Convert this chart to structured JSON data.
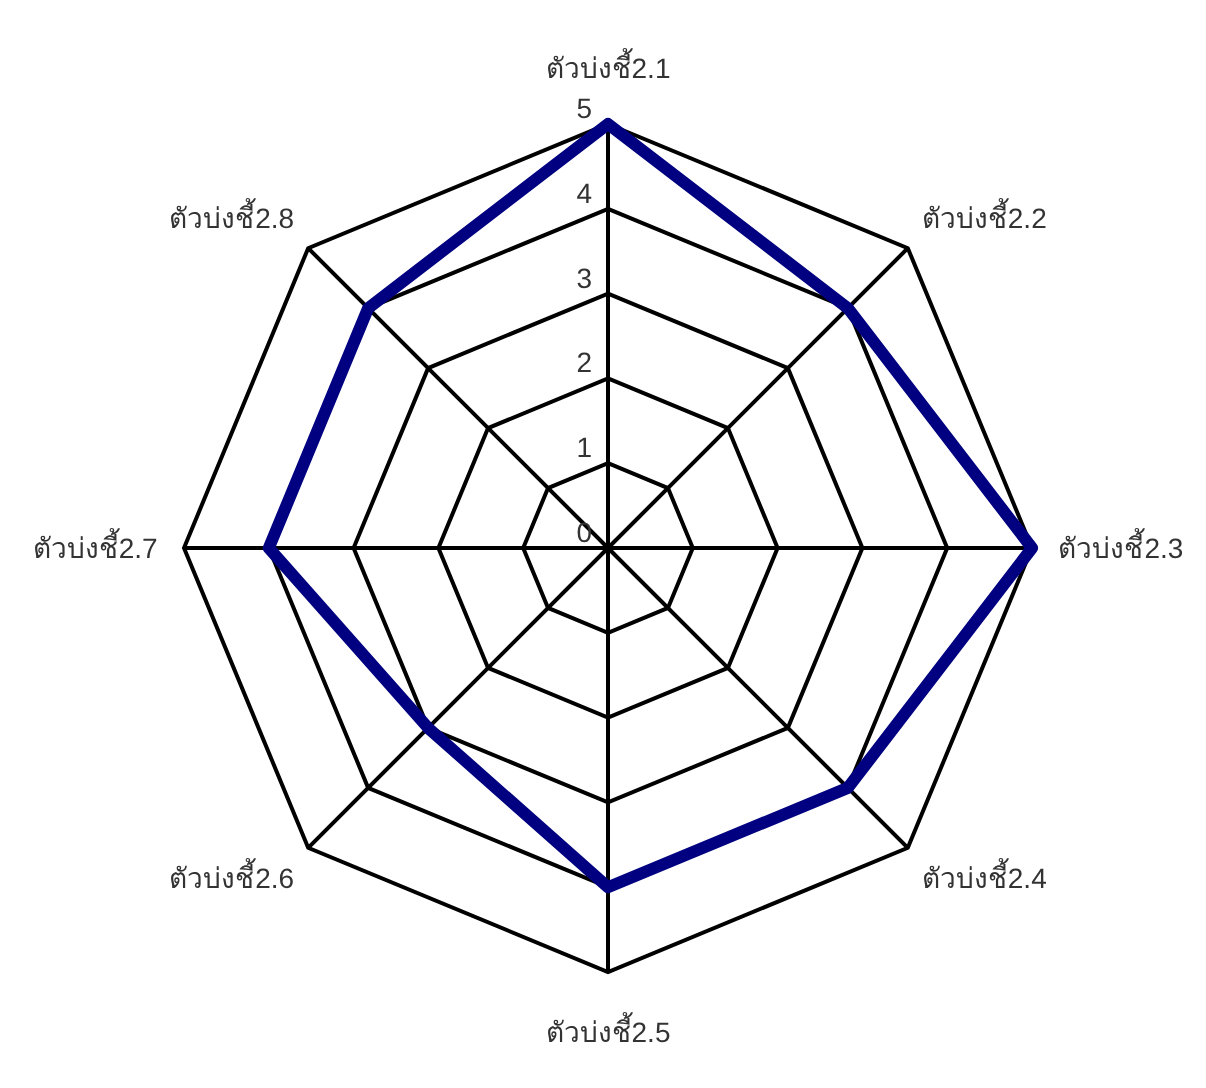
{
  "chart_data": {
    "type": "radar",
    "categories": [
      "ตัวบ่งชี้2.1",
      "ตัวบ่งชี้2.2",
      "ตัวบ่งชี้2.3",
      "ตัวบ่งชี้2.4",
      "ตัวบ่งชี้2.5",
      "ตัวบ่งชี้2.6",
      "ตัวบ่งชี้2.7",
      "ตัวบ่งชี้2.8"
    ],
    "series": [
      {
        "color": "#000080",
        "values": [
          5,
          4,
          5,
          4,
          4,
          3,
          4,
          4
        ]
      }
    ],
    "ylim": [
      0,
      5
    ],
    "yticks": [
      0,
      1,
      2,
      3,
      4,
      5
    ],
    "grid": true,
    "marker": "none",
    "line_style": "solid"
  }
}
